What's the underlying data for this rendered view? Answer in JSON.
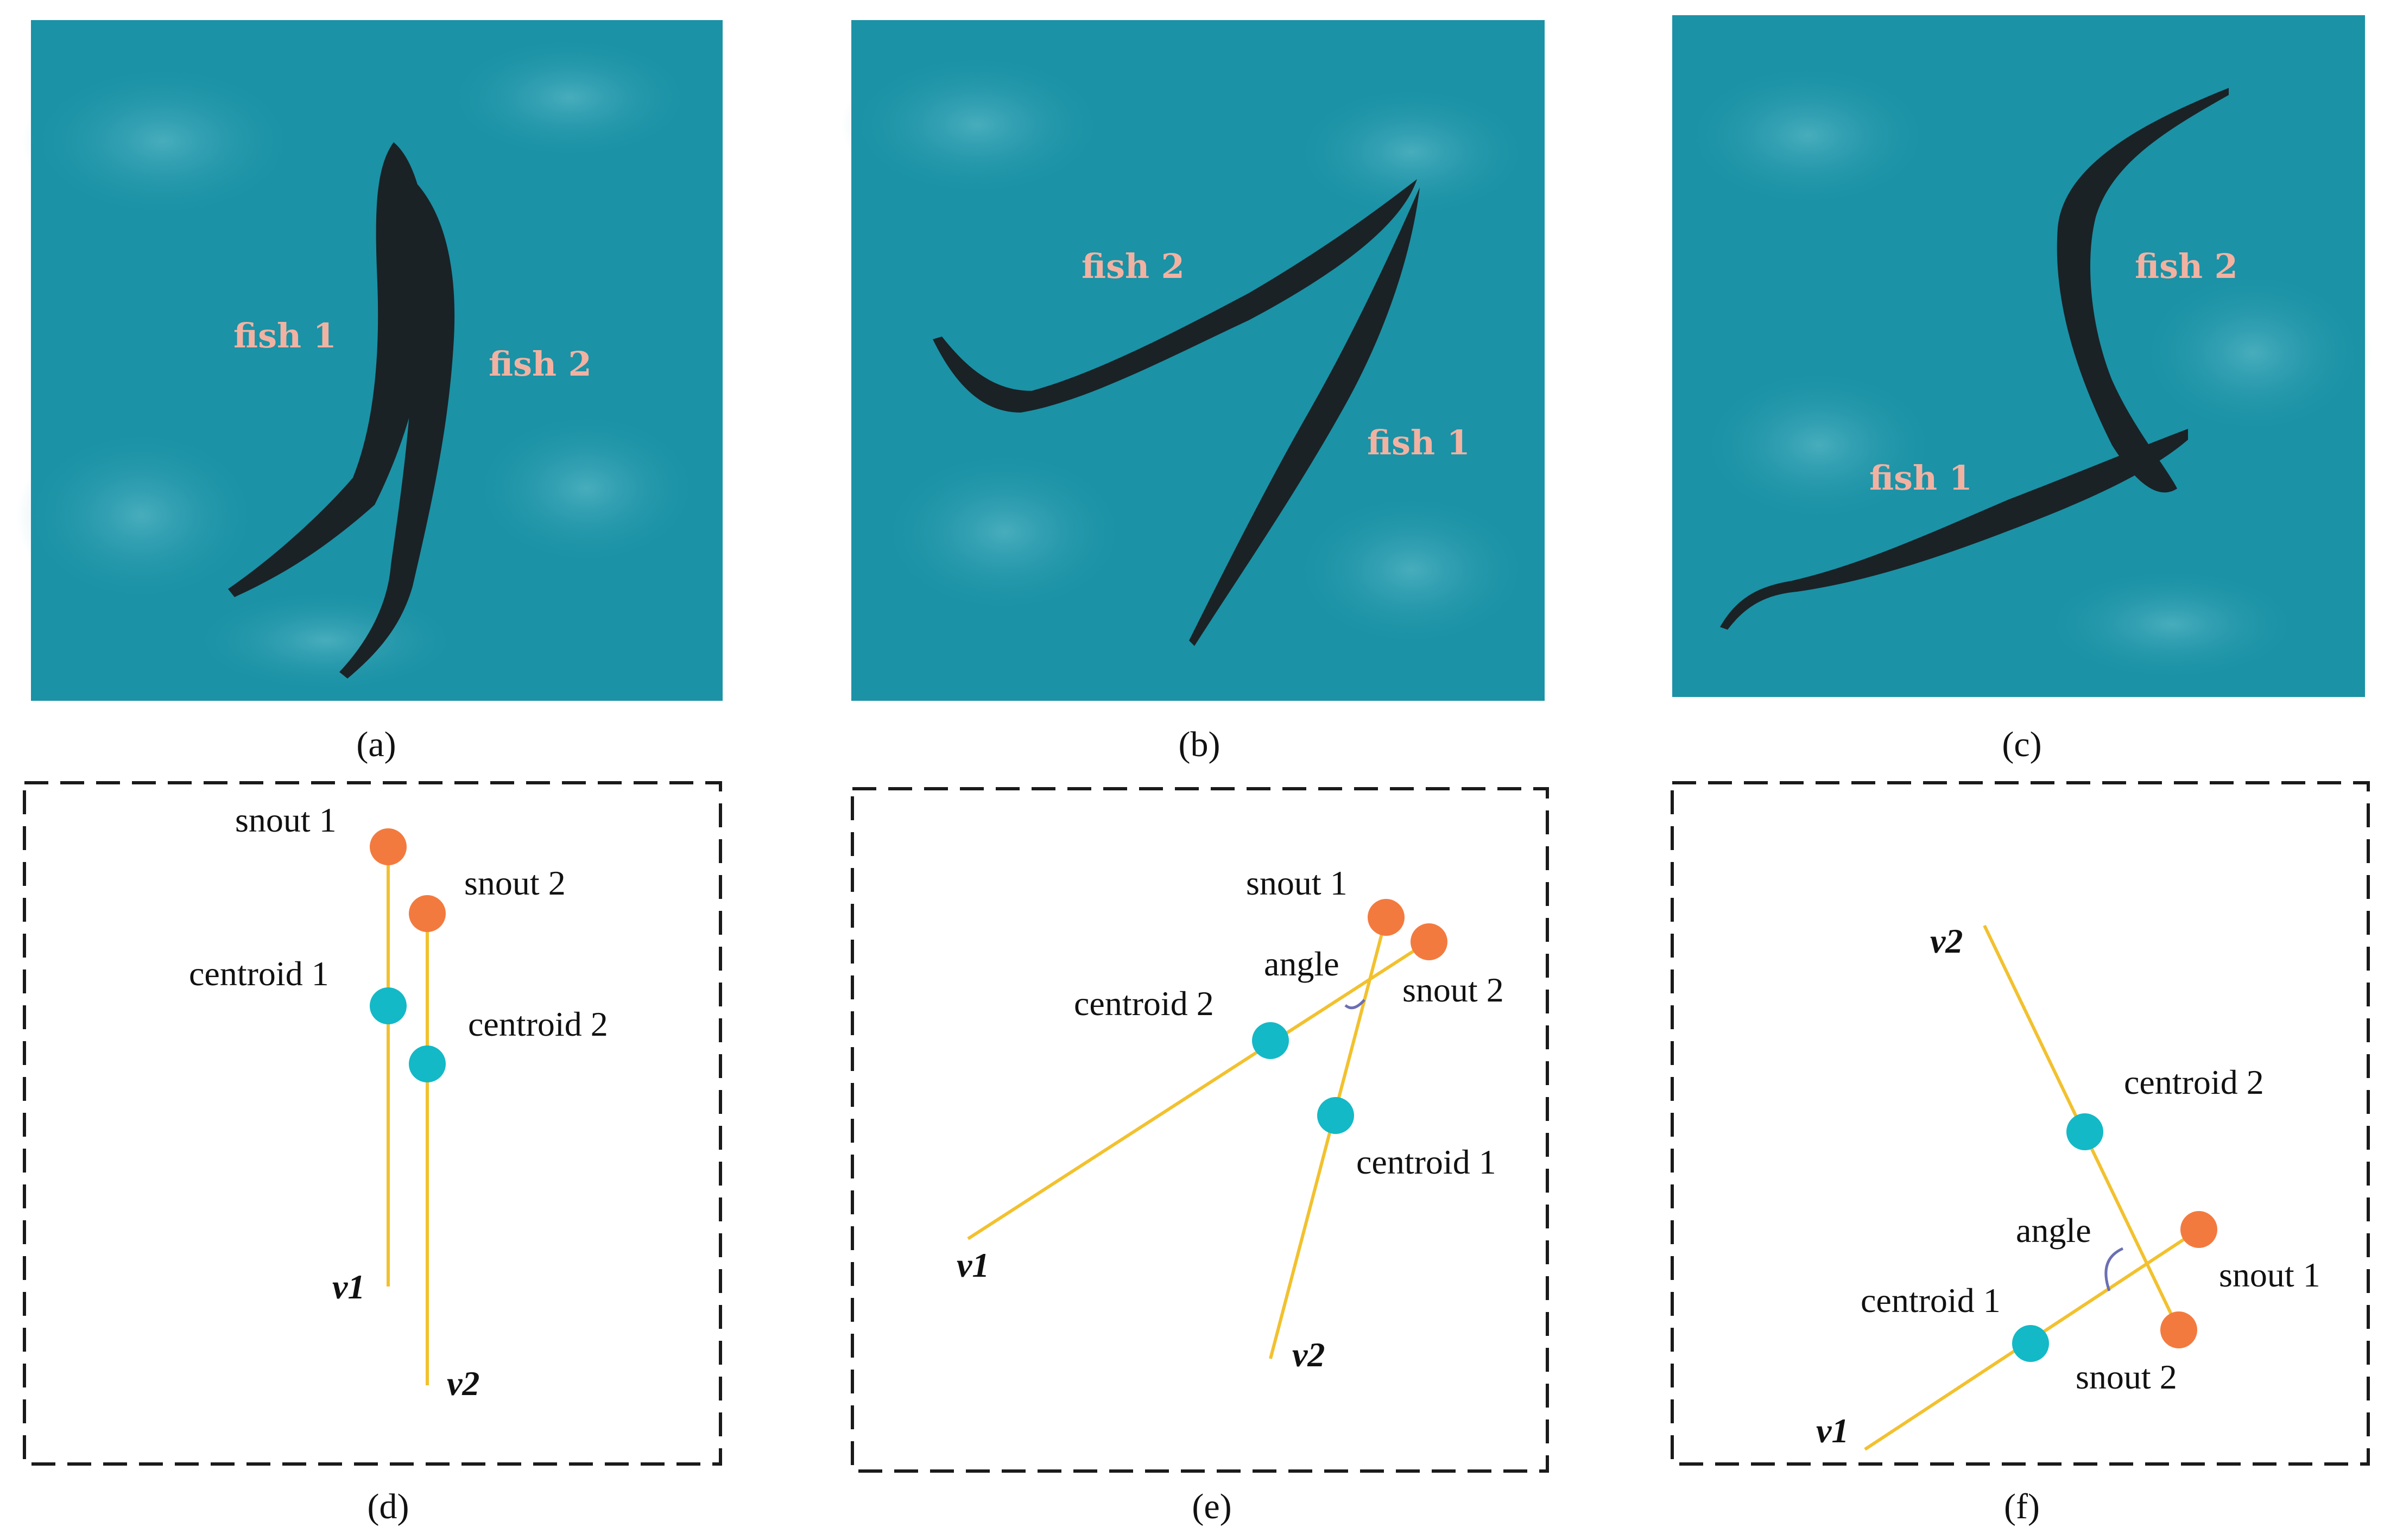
{
  "colors": {
    "water": "#1b92a6",
    "fish": "#1a2226",
    "snout": "#f37a3f",
    "centroid": "#13b9c6",
    "axis_line": "#f2c12e",
    "angle_arc": "#6b6fb3",
    "fish_label": "#f2b2a2",
    "dashed_border": "#1a1a1a"
  },
  "panels": {
    "a": {
      "caption": "(a)",
      "fish1": "fish 1",
      "fish2": "fish 2"
    },
    "b": {
      "caption": "(b)",
      "fish1": "fish 1",
      "fish2": "fish 2"
    },
    "c": {
      "caption": "(c)",
      "fish1": "fish 1",
      "fish2": "fish 2"
    },
    "d": {
      "caption": "(d)",
      "snout1": "snout 1",
      "snout2": "snout 2",
      "centroid1": "centroid 1",
      "centroid2": "centroid 2",
      "v1": "v1",
      "v2": "v2"
    },
    "e": {
      "caption": "(e)",
      "snout1": "snout 1",
      "snout2": "snout 2",
      "centroid1": "centroid 1",
      "centroid2": "centroid 2",
      "angle": "angle",
      "v1": "v1",
      "v2": "v2"
    },
    "f": {
      "caption": "(f)",
      "snout1": "snout 1",
      "snout2": "snout 2",
      "centroid1": "centroid 1",
      "centroid2": "centroid 2",
      "angle": "angle",
      "v1": "v1",
      "v2": "v2"
    }
  }
}
